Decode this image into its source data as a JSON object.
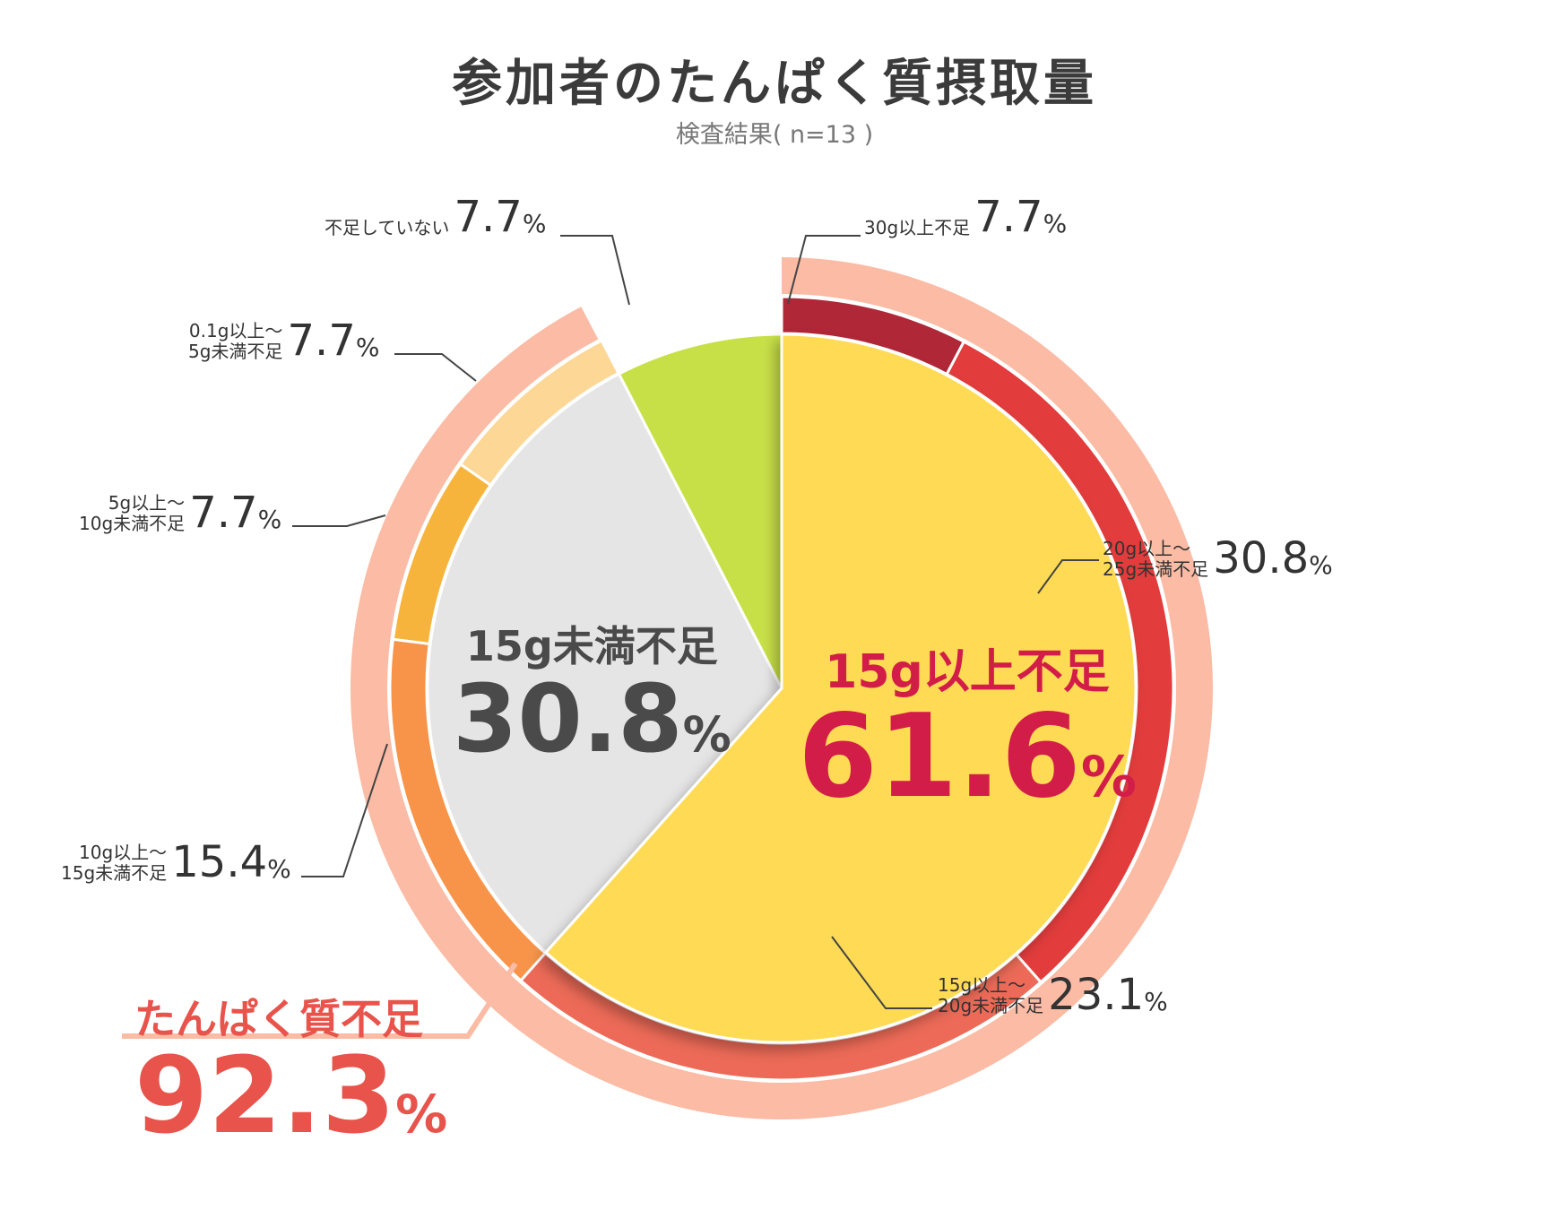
{
  "title": "参加者のたんぱく質摂取量",
  "subtitle": "検査結果( n=13 )",
  "chart_data": {
    "type": "pie",
    "title": "参加者のたんぱく質摂取量",
    "subtitle": "検査結果( n=13 )",
    "inner": [
      {
        "label": "15g以上不足",
        "value": 61.6,
        "display": "61.6",
        "color": "#FFDB55"
      },
      {
        "label": "15g未満不足",
        "value": 30.8,
        "display": "30.8",
        "color": "#E5E5E6"
      },
      {
        "label": "不足していない",
        "value": 7.7,
        "display": "7.7",
        "color": "#C8E048"
      }
    ],
    "outer": [
      {
        "label": "30g以上不足",
        "value": 7.7,
        "display": "7.7",
        "color": "#B02737"
      },
      {
        "label": "20g以上〜 25g未満不足",
        "value": 30.8,
        "display": "30.8",
        "color": "#E23C3C"
      },
      {
        "label": "15g以上〜 20g未満不足",
        "value": 23.1,
        "display": "23.1",
        "color": "#EC6A57"
      },
      {
        "label": "10g以上〜 15g未満不足",
        "value": 15.4,
        "display": "15.4",
        "color": "#F7944A"
      },
      {
        "label": "5g以上〜 10g未満不足",
        "value": 7.7,
        "display": "7.7",
        "color": "#F7B43C"
      },
      {
        "label": "0.1g以上〜 5g未満不足",
        "value": 7.7,
        "display": "7.7",
        "color": "#FDD795"
      }
    ],
    "group": {
      "label": "たんぱく質不足",
      "value": 92.3,
      "display": "92.3",
      "color": "#FBBBA4"
    }
  },
  "labels": {
    "percent": "%",
    "not_lacking": {
      "name": "不足していない",
      "value": "7.7"
    },
    "g30": {
      "name": "30g以上不足",
      "value": "7.7"
    },
    "g01": {
      "line1": "0.1g以上〜",
      "line2": "5g未満不足",
      "value": "7.7"
    },
    "g5": {
      "line1": "5g以上〜",
      "line2": "10g未満不足",
      "value": "7.7"
    },
    "g20": {
      "line1": "20g以上〜",
      "line2": "25g未満不足",
      "value": "30.8"
    },
    "g10": {
      "line1": "10g以上〜",
      "line2": "15g未満不足",
      "value": "15.4"
    },
    "g15": {
      "line1": "15g以上〜",
      "line2": "20g未満不足",
      "value": "23.1"
    },
    "under15": {
      "name": "15g未満不足",
      "value": "30.8"
    },
    "over15": {
      "name": "15g以上不足",
      "value": "61.6"
    },
    "lacking": {
      "name": "たんぱく質不足",
      "value": "92.3"
    }
  }
}
